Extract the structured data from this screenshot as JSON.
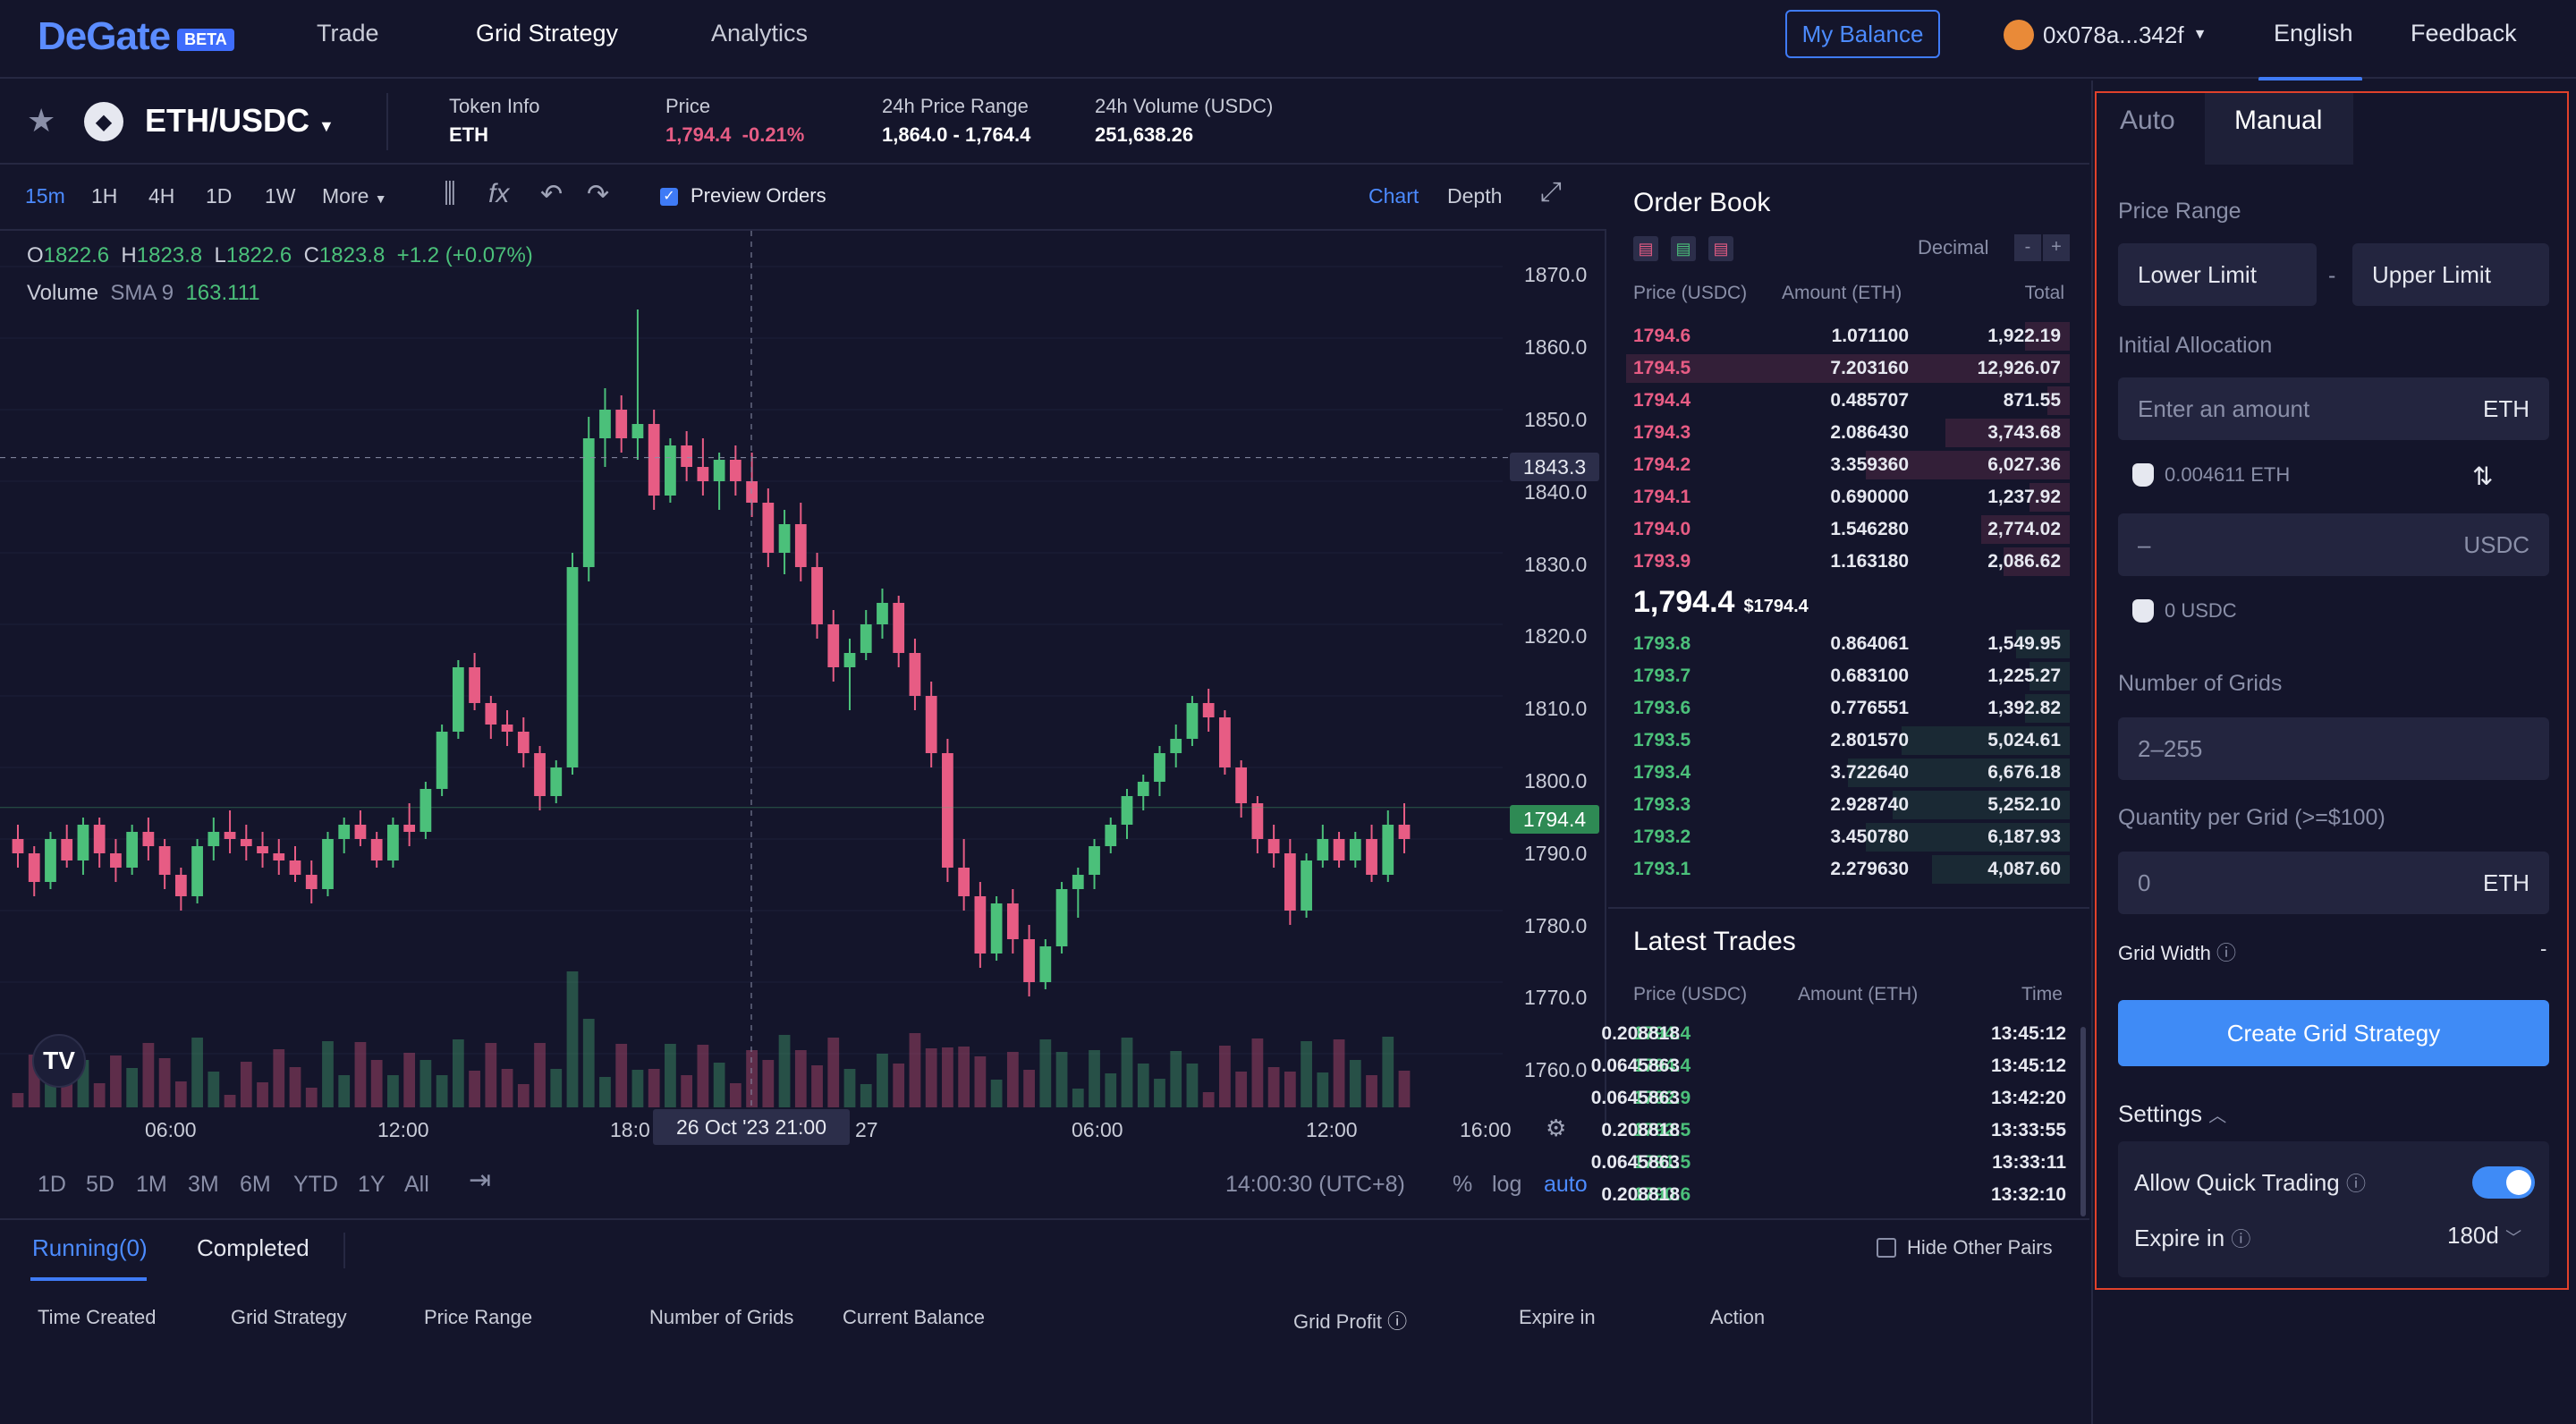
{
  "header": {
    "logo": "DeGate",
    "beta": "BETA",
    "nav": [
      "Trade",
      "Grid Strategy",
      "Analytics"
    ],
    "my_balance": "My Balance",
    "wallet": "0x078a...342f",
    "language": "English",
    "feedback": "Feedback"
  },
  "ticker": {
    "pair": "ETH/USDC",
    "token_info_label": "Token Info",
    "token_info_value": "ETH",
    "price_label": "Price",
    "price_value": "1,794.4",
    "price_change": "-0.21%",
    "range_label": "24h Price Range",
    "range_value": "1,864.0 - 1,764.4",
    "volume_label": "24h Volume (USDC)",
    "volume_value": "251,638.26"
  },
  "toolbar": {
    "timeframes": [
      "15m",
      "1H",
      "4H",
      "1D",
      "1W",
      "More"
    ],
    "preview_orders": "Preview Orders",
    "chart_tab": "Chart",
    "depth_tab": "Depth"
  },
  "chart": {
    "ohlc_o": "1822.6",
    "ohlc_h": "1823.8",
    "ohlc_l": "1822.6",
    "ohlc_c": "1823.8",
    "ohlc_change": "+1.2 (+0.07%)",
    "volume_label": "Volume",
    "sma_label": "SMA 9",
    "sma_value": "163.111",
    "y_ticks": [
      "1870.0",
      "1860.0",
      "1850.0",
      "1840.0",
      "1830.0",
      "1820.0",
      "1810.0",
      "1800.0",
      "1790.0",
      "1780.0",
      "1770.0",
      "1760.0"
    ],
    "crosshair_price": "1843.3",
    "last_price": "1794.4",
    "x_ticks": [
      "06:00",
      "12:00",
      "18:0",
      "27",
      "06:00",
      "12:00",
      "16:00"
    ],
    "crosshair_time": "26 Oct '23   21:00",
    "ranges": [
      "1D",
      "5D",
      "1M",
      "3M",
      "6M",
      "YTD",
      "1Y",
      "All"
    ],
    "clock": "14:00:30 (UTC+8)",
    "pct": "%",
    "log": "log",
    "auto": "auto"
  },
  "chart_data": {
    "type": "candlestick",
    "ylim": [
      1755,
      1875
    ],
    "candles": [
      [
        1790,
        1792,
        1786,
        1788
      ],
      [
        1788,
        1789,
        1782,
        1784
      ],
      [
        1784,
        1791,
        1783,
        1790
      ],
      [
        1790,
        1792,
        1786,
        1787
      ],
      [
        1787,
        1793,
        1785,
        1792
      ],
      [
        1792,
        1793,
        1786,
        1788
      ],
      [
        1788,
        1790,
        1784,
        1786
      ],
      [
        1786,
        1792,
        1785,
        1791
      ],
      [
        1791,
        1793,
        1787,
        1789
      ],
      [
        1789,
        1790,
        1783,
        1785
      ],
      [
        1785,
        1786,
        1780,
        1782
      ],
      [
        1782,
        1790,
        1781,
        1789
      ],
      [
        1789,
        1793,
        1787,
        1791
      ],
      [
        1791,
        1794,
        1788,
        1790
      ],
      [
        1790,
        1792,
        1787,
        1789
      ],
      [
        1789,
        1791,
        1786,
        1788
      ],
      [
        1788,
        1790,
        1785,
        1787
      ],
      [
        1787,
        1789,
        1784,
        1785
      ],
      [
        1785,
        1787,
        1781,
        1783
      ],
      [
        1783,
        1791,
        1782,
        1790
      ],
      [
        1790,
        1793,
        1788,
        1792
      ],
      [
        1792,
        1794,
        1789,
        1790
      ],
      [
        1790,
        1791,
        1786,
        1787
      ],
      [
        1787,
        1793,
        1786,
        1792
      ],
      [
        1792,
        1795,
        1789,
        1791
      ],
      [
        1791,
        1798,
        1790,
        1797
      ],
      [
        1797,
        1806,
        1796,
        1805
      ],
      [
        1805,
        1815,
        1804,
        1814
      ],
      [
        1814,
        1816,
        1808,
        1809
      ],
      [
        1809,
        1810,
        1804,
        1806
      ],
      [
        1806,
        1808,
        1803,
        1805
      ],
      [
        1805,
        1807,
        1800,
        1802
      ],
      [
        1802,
        1803,
        1794,
        1796
      ],
      [
        1796,
        1801,
        1795,
        1800
      ],
      [
        1800,
        1830,
        1799,
        1828
      ],
      [
        1828,
        1849,
        1826,
        1846
      ],
      [
        1846,
        1853,
        1842,
        1850
      ],
      [
        1850,
        1852,
        1844,
        1846
      ],
      [
        1846,
        1864,
        1843,
        1848
      ],
      [
        1848,
        1850,
        1836,
        1838
      ],
      [
        1838,
        1846,
        1837,
        1845
      ],
      [
        1845,
        1847,
        1840,
        1842
      ],
      [
        1842,
        1846,
        1838,
        1840
      ],
      [
        1840,
        1844,
        1836,
        1843
      ],
      [
        1843,
        1845,
        1838,
        1840
      ],
      [
        1840,
        1844,
        1835,
        1837
      ],
      [
        1837,
        1839,
        1828,
        1830
      ],
      [
        1830,
        1836,
        1827,
        1834
      ],
      [
        1834,
        1837,
        1826,
        1828
      ],
      [
        1828,
        1830,
        1818,
        1820
      ],
      [
        1820,
        1822,
        1812,
        1814
      ],
      [
        1814,
        1818,
        1808,
        1816
      ],
      [
        1816,
        1822,
        1815,
        1820
      ],
      [
        1820,
        1825,
        1818,
        1823
      ],
      [
        1823,
        1824,
        1814,
        1816
      ],
      [
        1816,
        1818,
        1808,
        1810
      ],
      [
        1810,
        1812,
        1800,
        1802
      ],
      [
        1802,
        1804,
        1784,
        1786
      ],
      [
        1786,
        1790,
        1780,
        1782
      ],
      [
        1782,
        1784,
        1772,
        1774
      ],
      [
        1774,
        1782,
        1773,
        1781
      ],
      [
        1781,
        1783,
        1774,
        1776
      ],
      [
        1776,
        1778,
        1768,
        1770
      ],
      [
        1770,
        1776,
        1769,
        1775
      ],
      [
        1775,
        1784,
        1774,
        1783
      ],
      [
        1783,
        1786,
        1779,
        1785
      ],
      [
        1785,
        1790,
        1783,
        1789
      ],
      [
        1789,
        1793,
        1788,
        1792
      ],
      [
        1792,
        1797,
        1790,
        1796
      ],
      [
        1796,
        1799,
        1794,
        1798
      ],
      [
        1798,
        1803,
        1796,
        1802
      ],
      [
        1802,
        1806,
        1800,
        1804
      ],
      [
        1804,
        1810,
        1803,
        1809
      ],
      [
        1809,
        1811,
        1805,
        1807
      ],
      [
        1807,
        1808,
        1799,
        1800
      ],
      [
        1800,
        1801,
        1793,
        1795
      ],
      [
        1795,
        1796,
        1788,
        1790
      ],
      [
        1790,
        1792,
        1786,
        1788
      ],
      [
        1788,
        1790,
        1778,
        1780
      ],
      [
        1780,
        1788,
        1779,
        1787
      ],
      [
        1787,
        1792,
        1786,
        1790
      ],
      [
        1790,
        1791,
        1786,
        1787
      ],
      [
        1787,
        1791,
        1786,
        1790
      ],
      [
        1790,
        1792,
        1784,
        1785
      ],
      [
        1785,
        1794,
        1784,
        1792
      ],
      [
        1792,
        1795,
        1788,
        1790
      ]
    ]
  },
  "order_book": {
    "title": "Order Book",
    "decimal": "Decimal",
    "cols": [
      "Price (USDC)",
      "Amount (ETH)",
      "Total"
    ],
    "asks": [
      {
        "p": "1794.6",
        "a": "1.071100",
        "t": "1,922.19",
        "d": 0.1
      },
      {
        "p": "1794.5",
        "a": "7.203160",
        "t": "12,926.07",
        "d": 1.0
      },
      {
        "p": "1794.4",
        "a": "0.485707",
        "t": "871.55",
        "d": 0.05
      },
      {
        "p": "1794.3",
        "a": "2.086430",
        "t": "3,743.68",
        "d": 0.28
      },
      {
        "p": "1794.2",
        "a": "3.359360",
        "t": "6,027.36",
        "d": 0.46
      },
      {
        "p": "1794.1",
        "a": "0.690000",
        "t": "1,237.92",
        "d": 0.09
      },
      {
        "p": "1794.0",
        "a": "1.546280",
        "t": "2,774.02",
        "d": 0.2
      },
      {
        "p": "1793.9",
        "a": "1.163180",
        "t": "2,086.62",
        "d": 0.15
      }
    ],
    "mid_price": "1,794.4",
    "mid_usd": "$1794.4",
    "bids": [
      {
        "p": "1793.8",
        "a": "0.864061",
        "t": "1,549.95",
        "d": 0.12
      },
      {
        "p": "1793.7",
        "a": "0.683100",
        "t": "1,225.27",
        "d": 0.09
      },
      {
        "p": "1793.6",
        "a": "0.776551",
        "t": "1,392.82",
        "d": 0.1
      },
      {
        "p": "1793.5",
        "a": "2.801570",
        "t": "5,024.61",
        "d": 0.38
      },
      {
        "p": "1793.4",
        "a": "3.722640",
        "t": "6,676.18",
        "d": 0.5
      },
      {
        "p": "1793.3",
        "a": "2.928740",
        "t": "5,252.10",
        "d": 0.4
      },
      {
        "p": "1793.2",
        "a": "3.450780",
        "t": "6,187.93",
        "d": 0.46
      },
      {
        "p": "1793.1",
        "a": "2.279630",
        "t": "4,087.60",
        "d": 0.31
      }
    ]
  },
  "latest_trades": {
    "title": "Latest Trades",
    "cols": [
      "Price (USDC)",
      "Amount (ETH)",
      "Time"
    ],
    "rows": [
      {
        "p": "1794.4",
        "a": "0.208818",
        "t": "13:45:12"
      },
      {
        "p": "1794.4",
        "a": "0.0645863",
        "t": "13:45:12"
      },
      {
        "p": "1792.9",
        "a": "0.0645863",
        "t": "13:42:20"
      },
      {
        "p": "1792.5",
        "a": "0.208818",
        "t": "13:33:55"
      },
      {
        "p": "1791.5",
        "a": "0.0645863",
        "t": "13:33:11"
      },
      {
        "p": "1790.6",
        "a": "0.208818",
        "t": "13:32:10"
      }
    ]
  },
  "bottom": {
    "running": "Running(0)",
    "completed": "Completed",
    "hide_pairs": "Hide Other Pairs",
    "cols": [
      "Time Created",
      "Grid Strategy",
      "Price Range",
      "Number of Grids",
      "Current Balance",
      "Grid Profit",
      "Expire in",
      "Action"
    ]
  },
  "panel": {
    "tab_auto": "Auto",
    "tab_manual": "Manual",
    "price_range": "Price Range",
    "lower": "Lower Limit",
    "upper": "Upper Limit",
    "dash": "-",
    "initial_allocation": "Initial Allocation",
    "amount_placeholder": "Enter an amount",
    "eth": "ETH",
    "eth_balance": "0.004611 ETH",
    "usdc_placeholder": "–",
    "usdc": "USDC",
    "usdc_balance": "0 USDC",
    "num_grids": "Number of Grids",
    "grids_placeholder": "2–255",
    "qty_per_grid": "Quantity per Grid (>=$100)",
    "qty_placeholder": "0",
    "grid_width": "Grid Width",
    "grid_width_value": "-",
    "create": "Create Grid Strategy",
    "settings": "Settings",
    "quick_trading": "Allow Quick Trading",
    "expire_in": "Expire in",
    "expire_value": "180d"
  }
}
